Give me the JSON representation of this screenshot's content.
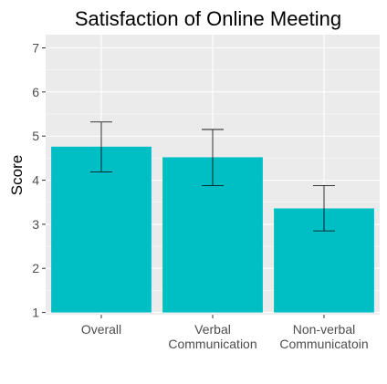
{
  "chart_data": {
    "type": "bar",
    "title": "Satisfaction of Online Meeting",
    "xlabel": "",
    "ylabel": "Score",
    "categories": [
      [
        "Overall"
      ],
      [
        "Verbal",
        "Communication"
      ],
      [
        "Non-verbal",
        "Communicatoin"
      ]
    ],
    "values": [
      4.76,
      4.52,
      3.36
    ],
    "error_low": [
      4.19,
      3.88,
      2.85
    ],
    "error_high": [
      5.32,
      5.15,
      3.88
    ],
    "ylim": [
      0.95,
      7.3
    ],
    "yticks": [
      "1",
      "2",
      "3",
      "4",
      "5",
      "6",
      "7"
    ],
    "bar_color": "#00bfc4",
    "panel_color": "#ebebeb",
    "grid_color": "#ffffff",
    "grid": true,
    "legend": "none"
  }
}
